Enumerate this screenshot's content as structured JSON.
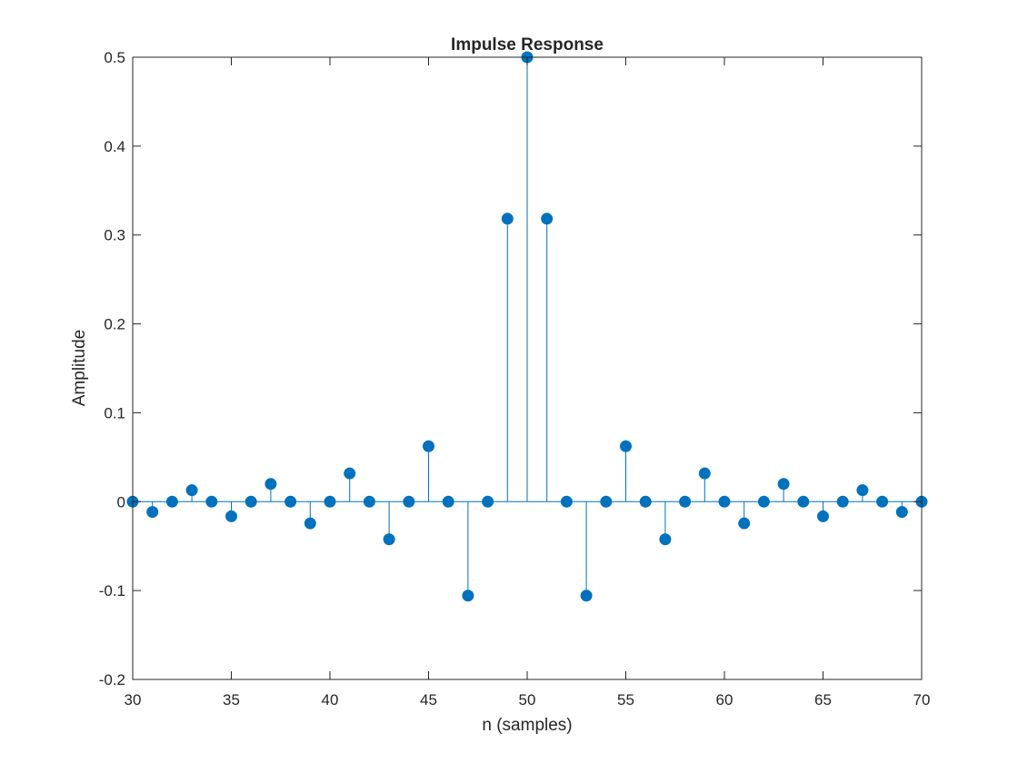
{
  "chart_data": {
    "type": "stem",
    "title": "Impulse Response",
    "xlabel": "n (samples)",
    "ylabel": "Amplitude",
    "xlim": [
      30,
      70
    ],
    "ylim": [
      -0.2,
      0.5
    ],
    "xticks": [
      30,
      35,
      40,
      45,
      50,
      55,
      60,
      65,
      70
    ],
    "yticks": [
      -0.2,
      -0.1,
      0,
      0.1,
      0.2,
      0.3,
      0.4,
      0.5
    ],
    "ytick_labels": [
      "-0.2",
      "-0.1",
      "0",
      "0.1",
      "0.2",
      "0.3",
      "0.4",
      "0.5"
    ],
    "grid": false,
    "color": "#0072BD",
    "x": [
      30,
      31,
      32,
      33,
      34,
      35,
      36,
      37,
      38,
      39,
      40,
      41,
      42,
      43,
      44,
      45,
      46,
      47,
      48,
      49,
      50,
      51,
      52,
      53,
      54,
      55,
      56,
      57,
      58,
      59,
      60,
      61,
      62,
      63,
      64,
      65,
      66,
      67,
      68,
      69,
      70
    ],
    "values": [
      0,
      -0.0116,
      0,
      0.0129,
      0,
      -0.0165,
      0,
      0.0199,
      0,
      -0.0244,
      0,
      0.0318,
      0,
      -0.0424,
      0,
      0.0624,
      0,
      -0.1057,
      0,
      0.3183,
      0.5,
      0.3183,
      0,
      -0.1057,
      0,
      0.0624,
      0,
      -0.0424,
      0,
      0.0318,
      0,
      -0.0244,
      0,
      0.0199,
      0,
      -0.0165,
      0,
      0.0129,
      0,
      -0.0116,
      0
    ]
  }
}
